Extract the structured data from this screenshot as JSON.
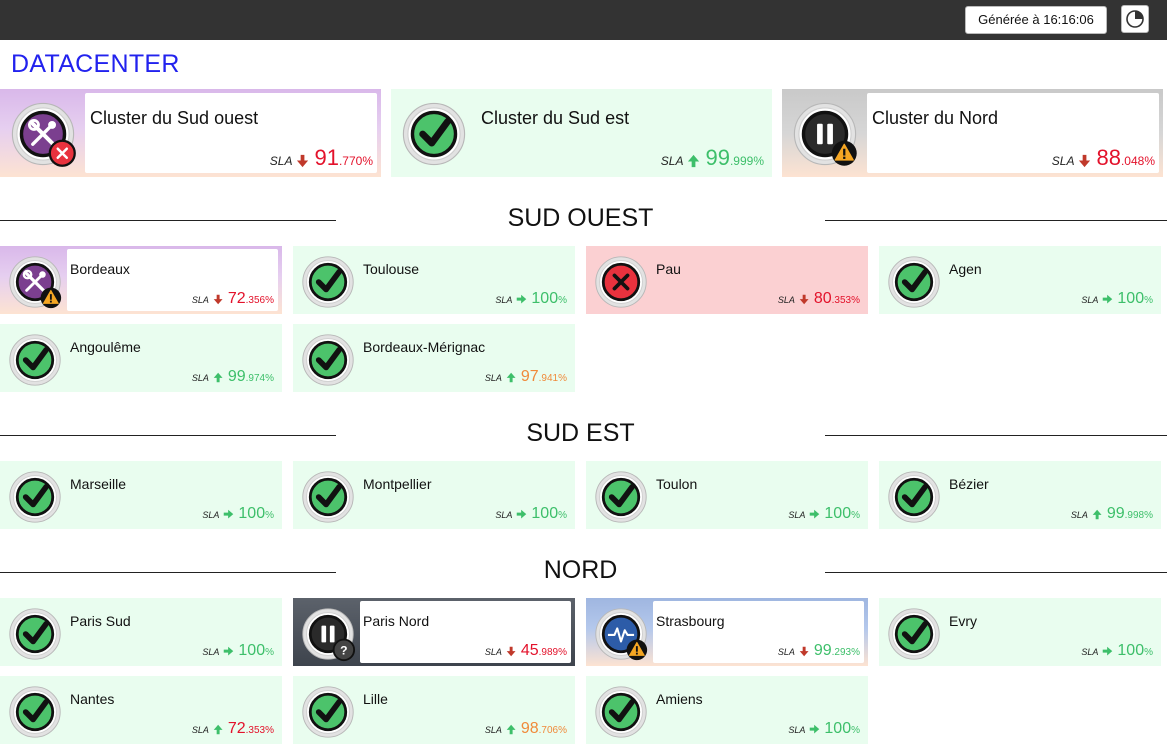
{
  "header": {
    "generated_label": "Générée à 16:16:06"
  },
  "page_title": "DATACENTER",
  "sla_label": "SLA",
  "clusters": [
    {
      "id": "sud-ouest",
      "name": "Cluster du Sud ouest",
      "status": "maintenance",
      "sub": "error",
      "trend": "down",
      "sla_int": "91",
      "sla_dec": ".770%",
      "color": "red"
    },
    {
      "id": "sud-est",
      "name": "Cluster du Sud est",
      "status": "ok",
      "sub": "",
      "trend": "up",
      "sla_int": "99",
      "sla_dec": ".999%",
      "color": "green"
    },
    {
      "id": "nord",
      "name": "Cluster du Nord",
      "status": "paused",
      "sub": "warning",
      "trend": "down",
      "sla_int": "88",
      "sla_dec": ".048%",
      "color": "red"
    }
  ],
  "sections": [
    {
      "title": "SUD OUEST"
    },
    {
      "title": "SUD EST"
    },
    {
      "title": "NORD"
    }
  ],
  "sites": [
    {
      "name": "Bordeaux",
      "status": "maintenance",
      "sub": "warning",
      "trend": "down",
      "sla_int": "72",
      "sla_dec": ".356%",
      "color": "red"
    },
    {
      "name": "Toulouse",
      "status": "ok",
      "sub": "",
      "trend": "flat",
      "sla_int": "100",
      "sla_dec": "%",
      "color": "green"
    },
    {
      "name": "Pau",
      "status": "error",
      "sub": "",
      "trend": "down",
      "sla_int": "80",
      "sla_dec": ".353%",
      "color": "red"
    },
    {
      "name": "Agen",
      "status": "ok",
      "sub": "",
      "trend": "flat",
      "sla_int": "100",
      "sla_dec": "%",
      "color": "green"
    },
    {
      "name": "Angoulême",
      "status": "ok",
      "sub": "",
      "trend": "up",
      "sla_int": "99",
      "sla_dec": ".974%",
      "color": "green"
    },
    {
      "name": "Bordeaux-Mérignac",
      "status": "ok",
      "sub": "",
      "trend": "up",
      "sla_int": "97",
      "sla_dec": ".941%",
      "color": "orange"
    },
    {
      "name": "Marseille",
      "status": "ok",
      "sub": "",
      "trend": "flat",
      "sla_int": "100",
      "sla_dec": "%",
      "color": "green"
    },
    {
      "name": "Montpellier",
      "status": "ok",
      "sub": "",
      "trend": "flat",
      "sla_int": "100",
      "sla_dec": "%",
      "color": "green"
    },
    {
      "name": "Toulon",
      "status": "ok",
      "sub": "",
      "trend": "flat",
      "sla_int": "100",
      "sla_dec": "%",
      "color": "green"
    },
    {
      "name": "Bézier",
      "status": "ok",
      "sub": "",
      "trend": "up",
      "sla_int": "99",
      "sla_dec": ".998%",
      "color": "green"
    },
    {
      "name": "Paris Sud",
      "status": "ok",
      "sub": "",
      "trend": "flat",
      "sla_int": "100",
      "sla_dec": "%",
      "color": "green"
    },
    {
      "name": "Paris Nord",
      "status": "paused",
      "sub": "unknown",
      "trend": "down",
      "sla_int": "45",
      "sla_dec": ".989%",
      "color": "red"
    },
    {
      "name": "Strasbourg",
      "status": "degraded",
      "sub": "warning",
      "trend": "down",
      "sla_int": "99",
      "sla_dec": ".293%",
      "color": "green"
    },
    {
      "name": "Evry",
      "status": "ok",
      "sub": "",
      "trend": "flat",
      "sla_int": "100",
      "sla_dec": "%",
      "color": "green"
    },
    {
      "name": "Nantes",
      "status": "ok",
      "sub": "",
      "trend": "up",
      "sla_int": "72",
      "sla_dec": ".353%",
      "color": "red"
    },
    {
      "name": "Lille",
      "status": "ok",
      "sub": "",
      "trend": "up",
      "sla_int": "98",
      "sla_dec": ".706%",
      "color": "orange"
    },
    {
      "name": "Amiens",
      "status": "ok",
      "sub": "",
      "trend": "flat",
      "sla_int": "100",
      "sla_dec": "%",
      "color": "green"
    }
  ],
  "colors": {
    "topbar": "#333333",
    "title_blue": "#2222ee",
    "ok_bg": "#e9fdef",
    "error_bg": "#fbd0d2",
    "red": "#e3122b",
    "green": "#3dbf6a",
    "orange": "#f08a3a"
  }
}
